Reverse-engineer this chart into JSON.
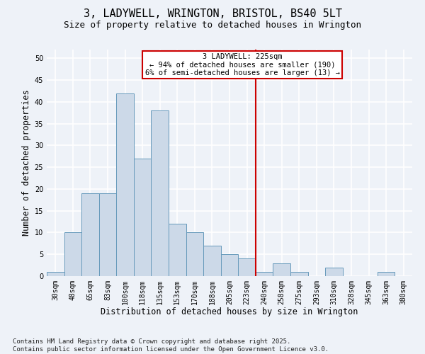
{
  "title": "3, LADYWELL, WRINGTON, BRISTOL, BS40 5LT",
  "subtitle": "Size of property relative to detached houses in Wrington",
  "xlabel": "Distribution of detached houses by size in Wrington",
  "ylabel": "Number of detached properties",
  "footnote": "Contains HM Land Registry data © Crown copyright and database right 2025.\nContains public sector information licensed under the Open Government Licence v3.0.",
  "bin_labels": [
    "30sqm",
    "48sqm",
    "65sqm",
    "83sqm",
    "100sqm",
    "118sqm",
    "135sqm",
    "153sqm",
    "170sqm",
    "188sqm",
    "205sqm",
    "223sqm",
    "240sqm",
    "258sqm",
    "275sqm",
    "293sqm",
    "310sqm",
    "328sqm",
    "345sqm",
    "363sqm",
    "380sqm"
  ],
  "bar_values": [
    1,
    10,
    19,
    19,
    42,
    27,
    38,
    12,
    10,
    7,
    5,
    4,
    1,
    3,
    1,
    0,
    2,
    0,
    0,
    1,
    0
  ],
  "bar_color": "#ccd9e8",
  "bar_edge_color": "#6699bb",
  "vline_x": 11.5,
  "vline_color": "#cc0000",
  "annotation_text": "3 LADYWELL: 225sqm\n← 94% of detached houses are smaller (190)\n6% of semi-detached houses are larger (13) →",
  "ylim": [
    0,
    52
  ],
  "yticks": [
    0,
    5,
    10,
    15,
    20,
    25,
    30,
    35,
    40,
    45,
    50
  ],
  "bg_color": "#eef2f8",
  "grid_color": "#ffffff",
  "title_fontsize": 11,
  "subtitle_fontsize": 9,
  "axis_label_fontsize": 8.5,
  "tick_fontsize": 7,
  "annot_fontsize": 7.5,
  "footnote_fontsize": 6.5
}
